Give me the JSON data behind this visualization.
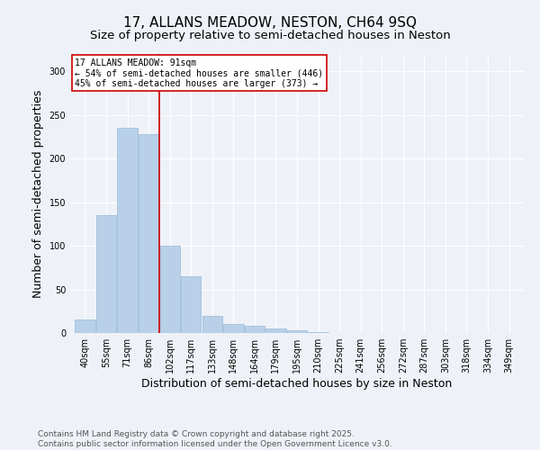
{
  "title": "17, ALLANS MEADOW, NESTON, CH64 9SQ",
  "subtitle": "Size of property relative to semi-detached houses in Neston",
  "xlabel": "Distribution of semi-detached houses by size in Neston",
  "ylabel": "Number of semi-detached properties",
  "categories": [
    "40sqm",
    "55sqm",
    "71sqm",
    "86sqm",
    "102sqm",
    "117sqm",
    "133sqm",
    "148sqm",
    "164sqm",
    "179sqm",
    "195sqm",
    "210sqm",
    "225sqm",
    "241sqm",
    "256sqm",
    "272sqm",
    "287sqm",
    "303sqm",
    "318sqm",
    "334sqm",
    "349sqm"
  ],
  "values": [
    15,
    135,
    235,
    228,
    100,
    65,
    20,
    10,
    8,
    5,
    3,
    1,
    0,
    0,
    0,
    0,
    0,
    0,
    0,
    0,
    0
  ],
  "bar_color_normal": "#b8d0e8",
  "bar_color_edge": "#9ab8d8",
  "vline_x": 3.5,
  "vline_color": "#cc0000",
  "annotation_title": "17 ALLANS MEADOW: 91sqm",
  "annotation_line1": "← 54% of semi-detached houses are smaller (446)",
  "annotation_line2": "45% of semi-detached houses are larger (373) →",
  "annotation_box_color": "#cc0000",
  "ylim": [
    0,
    320
  ],
  "yticks": [
    0,
    50,
    100,
    150,
    200,
    250,
    300
  ],
  "footer_line1": "Contains HM Land Registry data © Crown copyright and database right 2025.",
  "footer_line2": "Contains public sector information licensed under the Open Government Licence v3.0.",
  "background_color": "#eef2f8",
  "plot_bg_color": "#eef2f8",
  "title_fontsize": 11,
  "subtitle_fontsize": 9.5,
  "axis_label_fontsize": 9,
  "tick_fontsize": 7,
  "annotation_fontsize": 7,
  "footer_fontsize": 6.5
}
